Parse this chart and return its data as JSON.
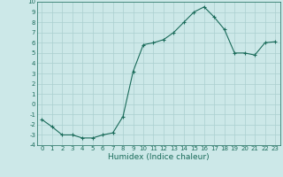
{
  "x": [
    0,
    1,
    2,
    3,
    4,
    5,
    6,
    7,
    8,
    9,
    10,
    11,
    12,
    13,
    14,
    15,
    16,
    17,
    18,
    19,
    20,
    21,
    22,
    23
  ],
  "y": [
    -1.5,
    -2.2,
    -3.0,
    -3.0,
    -3.3,
    -3.3,
    -3.0,
    -2.8,
    -1.2,
    3.2,
    5.8,
    6.0,
    6.3,
    7.0,
    8.0,
    9.0,
    9.5,
    8.5,
    7.3,
    5.0,
    5.0,
    4.8,
    6.0,
    6.1
  ],
  "line_color": "#1a6b5a",
  "marker": "+",
  "marker_size": 3,
  "marker_linewidth": 0.8,
  "xlabel": "Humidex (Indice chaleur)",
  "ylim": [
    -4,
    10
  ],
  "xlim": [
    -0.5,
    23.5
  ],
  "yticks": [
    -4,
    -3,
    -2,
    -1,
    0,
    1,
    2,
    3,
    4,
    5,
    6,
    7,
    8,
    9,
    10
  ],
  "xticks": [
    0,
    1,
    2,
    3,
    4,
    5,
    6,
    7,
    8,
    9,
    10,
    11,
    12,
    13,
    14,
    15,
    16,
    17,
    18,
    19,
    20,
    21,
    22,
    23
  ],
  "bg_color": "#cce8e8",
  "grid_color": "#aacfcf",
  "tick_fontsize": 5.0,
  "xlabel_fontsize": 6.5,
  "linewidth": 0.8
}
